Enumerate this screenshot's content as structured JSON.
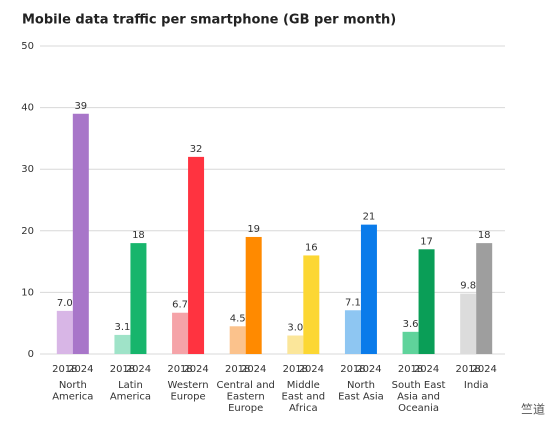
{
  "chart_data": {
    "type": "bar",
    "title": "Mobile data traffic per smartphone (GB per month)",
    "categories": [
      [
        "North",
        "America"
      ],
      [
        "Latin",
        "America"
      ],
      [
        "Western",
        "Europe"
      ],
      [
        "Central and",
        "Eastern",
        "Europe"
      ],
      [
        "Middle",
        "East and",
        "Africa"
      ],
      [
        "North",
        "East Asia"
      ],
      [
        "South East",
        "Asia and",
        "Oceania"
      ],
      [
        "India"
      ]
    ],
    "series": [
      {
        "name": "2018",
        "values": [
          7.0,
          3.1,
          6.7,
          4.5,
          3.0,
          7.1,
          3.6,
          9.8
        ],
        "value_labels": [
          "7.0",
          "3.1",
          "6.7",
          "4.5",
          "3.0",
          "7.1",
          "3.6",
          "9.8"
        ],
        "colors": [
          "#d8b6e6",
          "#9fe3c8",
          "#f5a3a8",
          "#fbc28c",
          "#fbe69a",
          "#8ec6f2",
          "#5fd39b",
          "#dcdcdc"
        ]
      },
      {
        "name": "2024",
        "values": [
          39,
          18,
          32,
          19,
          16,
          21,
          17,
          18
        ],
        "colors": [
          "#a876c9",
          "#17b56c",
          "#ff3340",
          "#ff8a00",
          "#fcd733",
          "#0a7bea",
          "#0a9e57",
          "#9e9e9e"
        ]
      }
    ],
    "ylim": [
      0,
      50
    ],
    "yticks": [
      0,
      10,
      20,
      30,
      40,
      50
    ],
    "grid": true,
    "watermark": "竺道"
  }
}
